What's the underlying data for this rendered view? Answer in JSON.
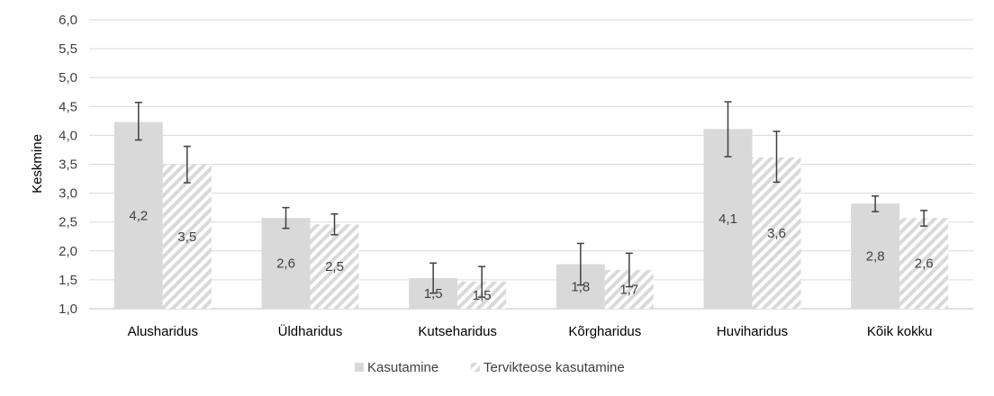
{
  "chart_data": {
    "type": "bar",
    "title": "",
    "xlabel": "",
    "ylabel": "Keskmine",
    "ylim": [
      1.0,
      6.0
    ],
    "ytick_step": 0.5,
    "y_ticks": [
      "1,0",
      "1,5",
      "2,0",
      "2,5",
      "3,0",
      "3,5",
      "4,0",
      "4,5",
      "5,0",
      "5,5",
      "6,0"
    ],
    "grid": true,
    "legend_position": "bottom",
    "categories": [
      "Alusharidus",
      "Üldharidus",
      "Kutseharidus",
      "Kõrgharidus",
      "Huviharidus",
      "Kõik kokku"
    ],
    "series": [
      {
        "name": "Kasutamine",
        "color": "#d9d9d9",
        "pattern": "solid",
        "values": [
          4.23,
          2.57,
          1.53,
          1.77,
          4.11,
          2.82
        ],
        "labels": [
          "4,2",
          "2,6",
          "1,5",
          "1,8",
          "4,1",
          "2,8"
        ],
        "error_low": [
          3.92,
          2.39,
          1.27,
          1.41,
          3.63,
          2.68
        ],
        "error_high": [
          4.57,
          2.75,
          1.79,
          2.13,
          4.58,
          2.95
        ]
      },
      {
        "name": "Tervikteose kasutamine",
        "color": "#d9d9d9",
        "pattern": "hatched",
        "values": [
          3.5,
          2.46,
          1.47,
          1.67,
          3.62,
          2.57
        ],
        "labels": [
          "3,5",
          "2,5",
          "1,5",
          "1,7",
          "3,6",
          "2,6"
        ],
        "error_low": [
          3.18,
          2.28,
          1.2,
          1.38,
          3.19,
          2.43
        ],
        "error_high": [
          3.81,
          2.64,
          1.73,
          1.96,
          4.07,
          2.7
        ]
      }
    ]
  }
}
